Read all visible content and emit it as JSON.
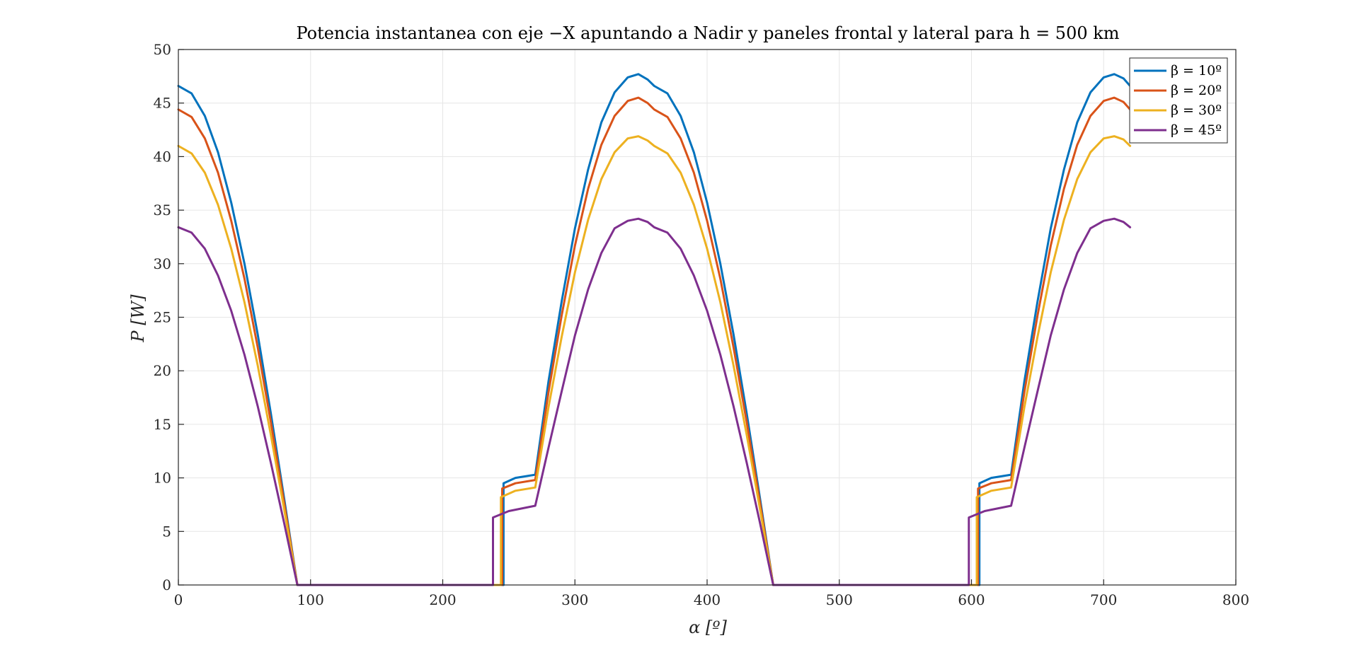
{
  "chart_data": {
    "type": "line",
    "title": "Potencia instantanea con eje −X apuntando a Nadir y paneles frontal y lateral para h = 500 km",
    "xlabel": "α [º]",
    "ylabel": "P [W]",
    "xlim": [
      0,
      800
    ],
    "ylim": [
      0,
      50
    ],
    "xticks": [
      0,
      100,
      200,
      300,
      400,
      500,
      600,
      700,
      800
    ],
    "yticks": [
      0,
      5,
      10,
      15,
      20,
      25,
      30,
      35,
      40,
      45,
      50
    ],
    "grid": true,
    "legend_position": "top-right",
    "series": [
      {
        "name": "β = 10º",
        "color": "#0072BD",
        "x": [
          0,
          10,
          20,
          30,
          40,
          50,
          60,
          70,
          80,
          90,
          246,
          246,
          255,
          270,
          280,
          290,
          300,
          310,
          320,
          330,
          340,
          348,
          355,
          360,
          370,
          380,
          390,
          400,
          410,
          420,
          430,
          440,
          450,
          606,
          606,
          615,
          630,
          640,
          650,
          660,
          670,
          680,
          690,
          700,
          708,
          715,
          720
        ],
        "y": [
          46.6,
          45.9,
          43.8,
          40.4,
          35.7,
          30.0,
          23.4,
          16.0,
          8.1,
          0.0,
          0.0,
          9.5,
          10.0,
          10.3,
          19.0,
          26.5,
          33.3,
          38.8,
          43.2,
          46.0,
          47.4,
          47.7,
          47.2,
          46.6,
          45.9,
          43.8,
          40.4,
          35.7,
          30.0,
          23.4,
          16.0,
          8.1,
          0.0,
          0.0,
          9.5,
          10.0,
          10.3,
          19.0,
          26.5,
          33.3,
          38.8,
          43.2,
          46.0,
          47.4,
          47.7,
          47.3,
          46.6
        ]
      },
      {
        "name": "β = 20º",
        "color": "#D95319",
        "x": [
          0,
          10,
          20,
          30,
          40,
          50,
          60,
          70,
          80,
          90,
          245,
          245,
          255,
          270,
          280,
          290,
          300,
          310,
          320,
          330,
          340,
          348,
          355,
          360,
          370,
          380,
          390,
          400,
          410,
          420,
          430,
          440,
          450,
          605,
          605,
          615,
          630,
          640,
          650,
          660,
          670,
          680,
          690,
          700,
          708,
          715,
          720
        ],
        "y": [
          44.4,
          43.7,
          41.7,
          38.5,
          34.0,
          28.6,
          22.2,
          15.2,
          7.7,
          0.0,
          0.0,
          9.0,
          9.5,
          9.8,
          18.0,
          25.2,
          31.7,
          37.0,
          41.1,
          43.8,
          45.2,
          45.5,
          45.0,
          44.4,
          43.7,
          41.7,
          38.5,
          34.0,
          28.6,
          22.2,
          15.2,
          7.7,
          0.0,
          0.0,
          9.0,
          9.5,
          9.8,
          18.0,
          25.2,
          31.7,
          37.0,
          41.1,
          43.8,
          45.2,
          45.5,
          45.1,
          44.4
        ]
      },
      {
        "name": "β = 30º",
        "color": "#EDB120",
        "x": [
          0,
          10,
          20,
          30,
          40,
          50,
          60,
          70,
          80,
          90,
          244,
          244,
          255,
          270,
          280,
          290,
          300,
          310,
          320,
          330,
          340,
          348,
          355,
          360,
          370,
          380,
          390,
          400,
          410,
          420,
          430,
          440,
          450,
          604,
          604,
          615,
          630,
          640,
          650,
          660,
          670,
          680,
          690,
          700,
          708,
          715,
          720
        ],
        "y": [
          41.0,
          40.3,
          38.5,
          35.5,
          31.4,
          26.4,
          20.5,
          14.0,
          7.1,
          0.0,
          0.0,
          8.2,
          8.8,
          9.1,
          16.6,
          23.2,
          29.2,
          34.1,
          37.9,
          40.4,
          41.7,
          41.9,
          41.5,
          41.0,
          40.3,
          38.5,
          35.5,
          31.4,
          26.4,
          20.5,
          14.0,
          7.1,
          0.0,
          0.0,
          8.2,
          8.8,
          9.1,
          16.6,
          23.2,
          29.2,
          34.1,
          37.9,
          40.4,
          41.7,
          41.9,
          41.6,
          41.0
        ]
      },
      {
        "name": "β = 45º",
        "color": "#7E2F8E",
        "x": [
          0,
          10,
          20,
          30,
          40,
          50,
          60,
          70,
          80,
          90,
          238,
          238,
          250,
          270,
          280,
          290,
          300,
          310,
          320,
          330,
          340,
          348,
          355,
          360,
          370,
          380,
          390,
          400,
          410,
          420,
          430,
          440,
          450,
          598,
          598,
          610,
          630,
          640,
          650,
          660,
          670,
          680,
          690,
          700,
          708,
          715,
          720
        ],
        "y": [
          33.4,
          32.9,
          31.4,
          28.9,
          25.6,
          21.5,
          16.7,
          11.4,
          5.8,
          0.0,
          0.0,
          6.3,
          6.9,
          7.4,
          12.8,
          18.1,
          23.3,
          27.6,
          31.0,
          33.3,
          34.0,
          34.2,
          33.9,
          33.4,
          32.9,
          31.4,
          28.9,
          25.6,
          21.5,
          16.7,
          11.4,
          5.8,
          0.0,
          0.0,
          6.3,
          6.9,
          7.4,
          12.8,
          18.1,
          23.3,
          27.6,
          31.0,
          33.3,
          34.0,
          34.2,
          33.9,
          33.4
        ]
      }
    ]
  }
}
